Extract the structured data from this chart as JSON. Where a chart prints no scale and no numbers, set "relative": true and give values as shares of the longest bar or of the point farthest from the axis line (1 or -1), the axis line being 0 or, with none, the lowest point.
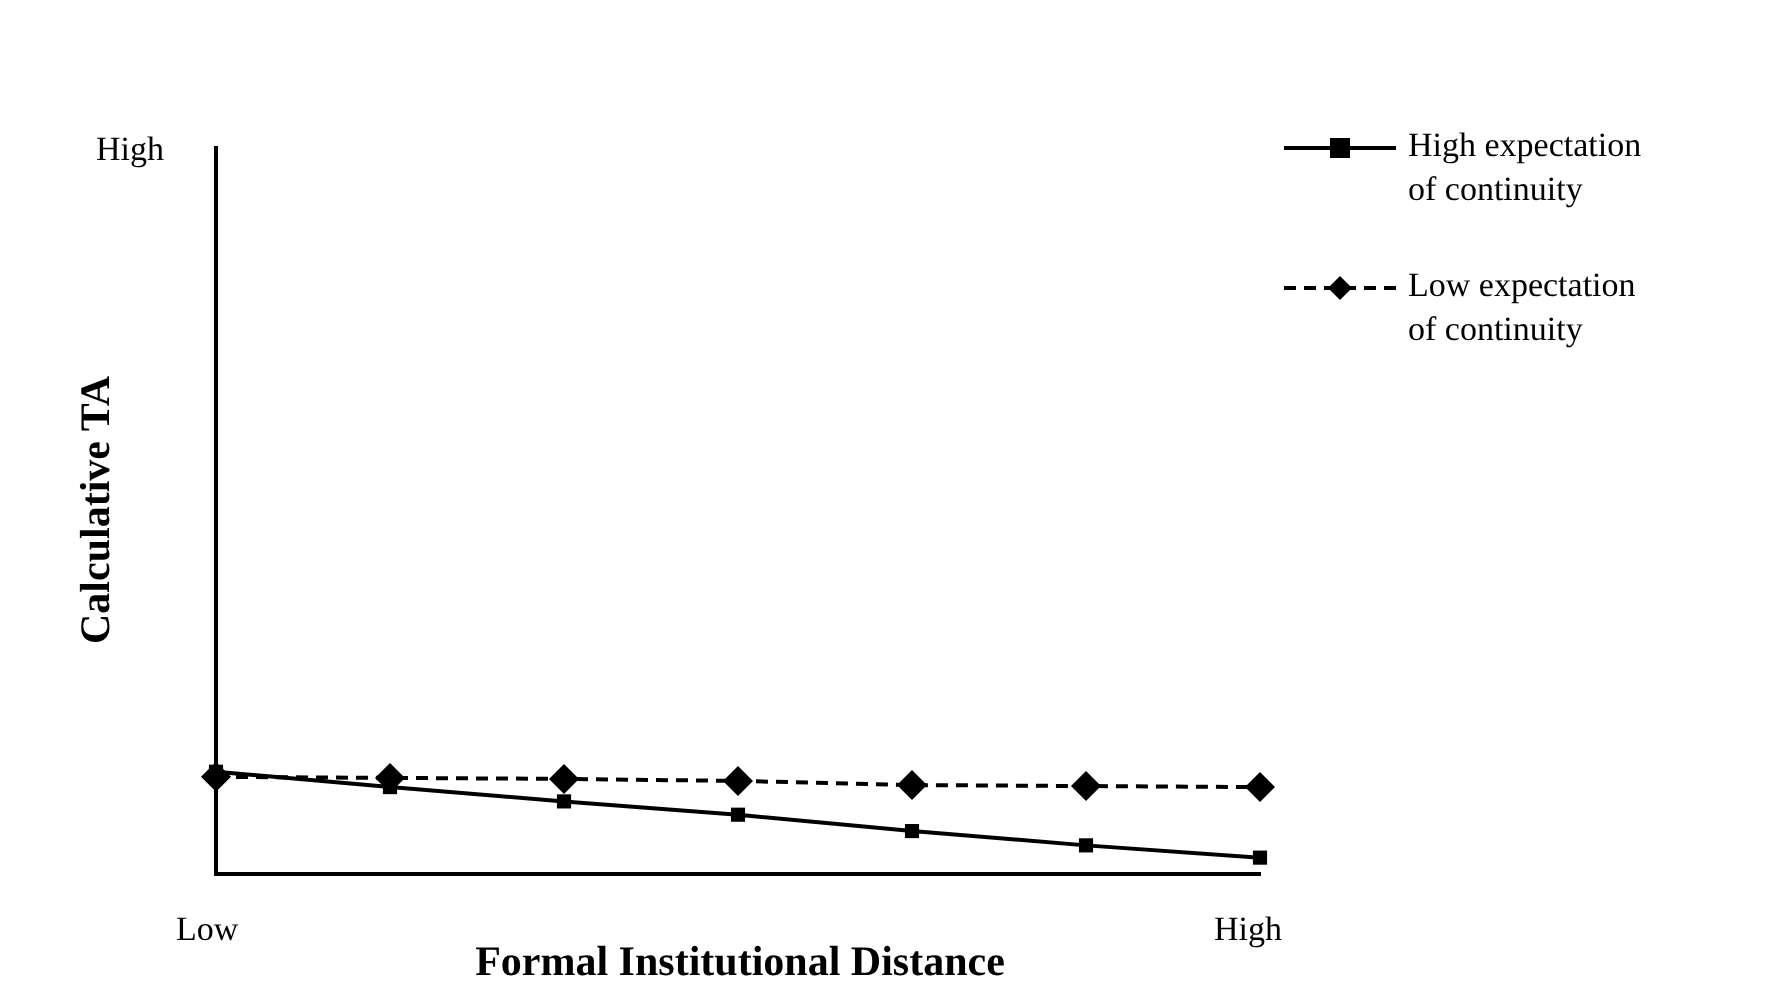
{
  "chart_data": {
    "type": "line",
    "relative": true,
    "xlabel": "Formal Institutional Distance",
    "ylabel": "Calculative TA",
    "categories": [
      null,
      null,
      null,
      null,
      null,
      null,
      null
    ],
    "series": [
      {
        "name": "High expectation of continuity",
        "color": "#000000",
        "marker": "square",
        "line_style": "solid",
        "values": [
          1,
          0.85,
          0.71,
          0.58,
          0.42,
          0.28,
          0.16
        ]
      },
      {
        "name": "Low expectation of continuity",
        "color": "#000000",
        "marker": "diamond",
        "line_style": "dashed",
        "values": [
          0.95,
          0.94,
          0.93,
          0.91,
          0.87,
          0.86,
          0.85
        ]
      }
    ],
    "annotations": [
      "High",
      "Low",
      "High"
    ],
    "legend": "top right",
    "grid": false
  }
}
